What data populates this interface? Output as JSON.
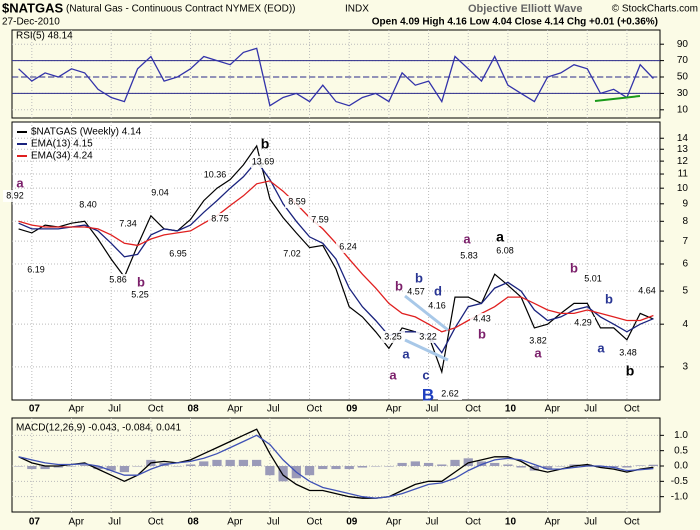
{
  "header": {
    "symbol": "$NATGAS",
    "description": "(Natural Gas - Continuous Contract NYMEX (EOD))",
    "exchange": "INDX",
    "copyright": "© StockCharts.com",
    "date": "27-Dec-2010",
    "quote": "Open 4.09 High 4.16 Low 4.04 Close 4.14 Chg +0.01 (+0.36%)",
    "watermark": "Objective Elliott Wave"
  },
  "chart_data": [
    {
      "type": "line",
      "title": "RSI(5) 48.14",
      "categories": [
        null,
        "07",
        null,
        null,
        "Apr",
        null,
        null,
        "Jul",
        null,
        null,
        "Oct",
        null,
        null,
        "08",
        null,
        null,
        "Apr",
        null,
        null,
        "Jul",
        null,
        null,
        "Oct",
        null,
        null,
        "09",
        null,
        null,
        "Apr",
        null,
        null,
        "Jul",
        null,
        null,
        "Oct",
        null,
        null,
        "10",
        null,
        null,
        "Apr",
        null,
        null,
        "Jul",
        null,
        null,
        "Oct",
        null,
        null
      ],
      "series": [
        {
          "color": "#3333aa",
          "values": [
            60,
            45,
            55,
            50,
            60,
            55,
            35,
            25,
            20,
            60,
            75,
            45,
            50,
            60,
            75,
            70,
            65,
            80,
            85,
            15,
            25,
            30,
            20,
            40,
            20,
            15,
            25,
            30,
            20,
            55,
            40,
            45,
            20,
            75,
            60,
            45,
            75,
            40,
            30,
            20,
            50,
            55,
            65,
            60,
            30,
            35,
            25,
            65,
            48.14
          ]
        }
      ],
      "ylim": [
        0,
        100
      ],
      "yticks": [
        10,
        30,
        50,
        70,
        90
      ],
      "levels": [
        30,
        50,
        70
      ],
      "level_color": "#2a2a8a",
      "grid": true,
      "xaxis": false
    },
    {
      "type": "line",
      "categories": [
        null,
        "07",
        null,
        null,
        "Apr",
        null,
        null,
        "Jul",
        null,
        null,
        "Oct",
        null,
        null,
        "08",
        null,
        null,
        "Apr",
        null,
        null,
        "Jul",
        null,
        null,
        "Oct",
        null,
        null,
        "09",
        null,
        null,
        "Apr",
        null,
        null,
        "Jul",
        null,
        null,
        "Oct",
        null,
        null,
        "10",
        null,
        null,
        "Apr",
        null,
        null,
        "Jul",
        null,
        null,
        "Oct",
        null,
        null
      ],
      "series": [
        {
          "name": "$NATGAS (Weekly) 4.14",
          "color": "#000000",
          "values": [
            7.6,
            7.4,
            7.8,
            7.7,
            7.9,
            8.0,
            7.1,
            6.2,
            5.5,
            6.8,
            8.3,
            7.6,
            7.5,
            8.1,
            9.2,
            10.0,
            10.6,
            11.7,
            13.3,
            9.3,
            8.2,
            7.4,
            6.7,
            6.8,
            5.8,
            4.5,
            4.2,
            3.8,
            3.4,
            3.9,
            3.8,
            3.7,
            2.9,
            4.8,
            4.8,
            4.6,
            5.6,
            5.2,
            4.8,
            3.9,
            4.0,
            4.3,
            4.6,
            4.6,
            3.9,
            3.9,
            3.6,
            4.3,
            4.14
          ]
        },
        {
          "name": "EMA(13) 4.15",
          "color": "#1a237e",
          "values": [
            7.9,
            7.6,
            7.6,
            7.6,
            7.7,
            7.8,
            7.5,
            6.9,
            6.3,
            6.4,
            7.3,
            7.6,
            7.5,
            7.8,
            8.5,
            9.2,
            10.0,
            10.8,
            12.0,
            10.6,
            9.0,
            8.0,
            7.2,
            6.9,
            6.2,
            5.1,
            4.5,
            4.1,
            3.7,
            3.8,
            3.8,
            3.7,
            3.3,
            3.9,
            4.5,
            4.6,
            5.1,
            5.3,
            5.0,
            4.4,
            4.1,
            4.2,
            4.4,
            4.5,
            4.2,
            4.0,
            3.8,
            4.0,
            4.15
          ]
        },
        {
          "name": "EMA(34) 4.24",
          "color": "#e02020",
          "values": [
            8.0,
            7.8,
            7.7,
            7.7,
            7.7,
            7.7,
            7.6,
            7.3,
            6.9,
            6.8,
            7.1,
            7.3,
            7.4,
            7.5,
            7.9,
            8.3,
            8.9,
            9.5,
            10.3,
            10.5,
            9.8,
            9.0,
            8.2,
            7.6,
            6.9,
            6.2,
            5.6,
            5.1,
            4.6,
            4.3,
            4.2,
            4.0,
            3.8,
            3.9,
            4.1,
            4.3,
            4.5,
            4.8,
            4.8,
            4.6,
            4.4,
            4.3,
            4.3,
            4.4,
            4.3,
            4.2,
            4.1,
            4.1,
            4.24
          ]
        }
      ],
      "log_scale": true,
      "ylim": [
        2.4,
        15
      ],
      "yticks": [
        3,
        4,
        5,
        6,
        7,
        8,
        9,
        10,
        11,
        12,
        13,
        14
      ],
      "grid": true,
      "xaxis": true,
      "price_labels": [
        8.92,
        6.19,
        {
          "value": 8.4,
          "label": "8.40"
        },
        7.34,
        5.86,
        5.25,
        9.04,
        6.95,
        8.75,
        10.36,
        13.69,
        8.59,
        7.59,
        7.02,
        6.24,
        4.57,
        4.16,
        3.25,
        3.22,
        2.62,
        5.83,
        6.08,
        4.43,
        3.82,
        5.01,
        4.29,
        4.64,
        3.48
      ],
      "wave_labels": [
        {
          "text": "a",
          "color": "#7b1f6a"
        },
        {
          "text": "b",
          "color": "#7b1f6a"
        },
        {
          "text": "b",
          "color": "#000000"
        },
        {
          "text": "b",
          "color": "#7b1f6a"
        },
        {
          "text": "b",
          "color": "#283593"
        },
        {
          "text": "d",
          "color": "#283593"
        },
        {
          "text": "a",
          "color": "#283593"
        },
        {
          "text": "a",
          "color": "#7b1f6a"
        },
        {
          "text": "c",
          "color": "#283593"
        },
        {
          "text": "B",
          "color": "#1f3fbf"
        },
        {
          "text": "a",
          "color": "#7b1f6a"
        },
        {
          "text": "a",
          "color": "#000000"
        },
        {
          "text": "b",
          "color": "#7b1f6a"
        },
        {
          "text": "a",
          "color": "#7b1f6a"
        },
        {
          "text": "b",
          "color": "#7b1f6a"
        },
        {
          "text": "b",
          "color": "#283593"
        },
        {
          "text": "a",
          "color": "#283593"
        },
        {
          "text": "b",
          "color": "#000000"
        }
      ]
    },
    {
      "type": "line",
      "title": "MACD(12,26,9) -0.043, -0.084, 0.041",
      "categories": [
        null,
        "07",
        null,
        null,
        "Apr",
        null,
        null,
        "Jul",
        null,
        null,
        "Oct",
        null,
        null,
        "08",
        null,
        null,
        "Apr",
        null,
        null,
        "Jul",
        null,
        null,
        "Oct",
        null,
        null,
        "09",
        null,
        null,
        "Apr",
        null,
        null,
        "Jul",
        null,
        null,
        "Oct",
        null,
        null,
        "10",
        null,
        null,
        "Apr",
        null,
        null,
        "Jul",
        null,
        null,
        "Oct",
        null,
        null
      ],
      "series": [
        {
          "type": "bar",
          "color": "#9a9ab8",
          "values": [
            0,
            -0.1,
            -0.1,
            -0.05,
            0,
            0.03,
            -0.1,
            -0.15,
            -0.2,
            0,
            0.2,
            0.1,
            0,
            0.05,
            0.15,
            0.2,
            0.2,
            0.2,
            0.2,
            -0.3,
            -0.5,
            -0.4,
            -0.3,
            -0.1,
            -0.1,
            -0.1,
            -0.05,
            0,
            0,
            0.1,
            0.15,
            0.1,
            0.05,
            0.2,
            0.25,
            0.15,
            0.1,
            0.05,
            -0.05,
            -0.15,
            -0.1,
            0,
            0.05,
            0.05,
            -0.05,
            -0.05,
            -0.05,
            0.02,
            0.041
          ]
        },
        {
          "type": "line",
          "color": "#000000",
          "values": [
            0.3,
            0.1,
            0.0,
            0.0,
            0.05,
            0.1,
            -0.1,
            -0.3,
            -0.5,
            -0.3,
            0.1,
            0.15,
            0.1,
            0.2,
            0.4,
            0.6,
            0.8,
            1.0,
            1.2,
            0.4,
            -0.3,
            -0.6,
            -0.8,
            -0.8,
            -0.9,
            -1.0,
            -1.05,
            -1.05,
            -1.0,
            -0.8,
            -0.6,
            -0.5,
            -0.5,
            -0.2,
            0.1,
            0.2,
            0.3,
            0.3,
            0.15,
            -0.1,
            -0.2,
            -0.1,
            0.0,
            0.05,
            -0.05,
            -0.1,
            -0.2,
            -0.1,
            -0.043
          ]
        },
        {
          "type": "line",
          "color": "#3f51b5",
          "values": [
            0.3,
            0.2,
            0.1,
            0.05,
            0.05,
            0.07,
            0.0,
            -0.15,
            -0.3,
            -0.3,
            -0.1,
            0.05,
            0.1,
            0.15,
            0.25,
            0.4,
            0.6,
            0.8,
            1.0,
            0.7,
            0.2,
            -0.2,
            -0.5,
            -0.7,
            -0.8,
            -0.9,
            -1.0,
            -1.05,
            -1.0,
            -0.9,
            -0.75,
            -0.6,
            -0.55,
            -0.4,
            -0.15,
            0.05,
            0.2,
            0.25,
            0.2,
            0.05,
            -0.1,
            -0.1,
            -0.05,
            0.0,
            0.0,
            -0.05,
            -0.15,
            -0.12,
            -0.084
          ]
        }
      ],
      "ylim": [
        -1.5,
        1.5
      ],
      "yticks": [
        {
          "value": 1,
          "label": "1.0"
        },
        0.5,
        {
          "value": 0,
          "label": "0.0"
        },
        -0.5,
        {
          "value": -1,
          "label": "-1.0"
        }
      ],
      "grid": true,
      "xaxis": true
    }
  ]
}
